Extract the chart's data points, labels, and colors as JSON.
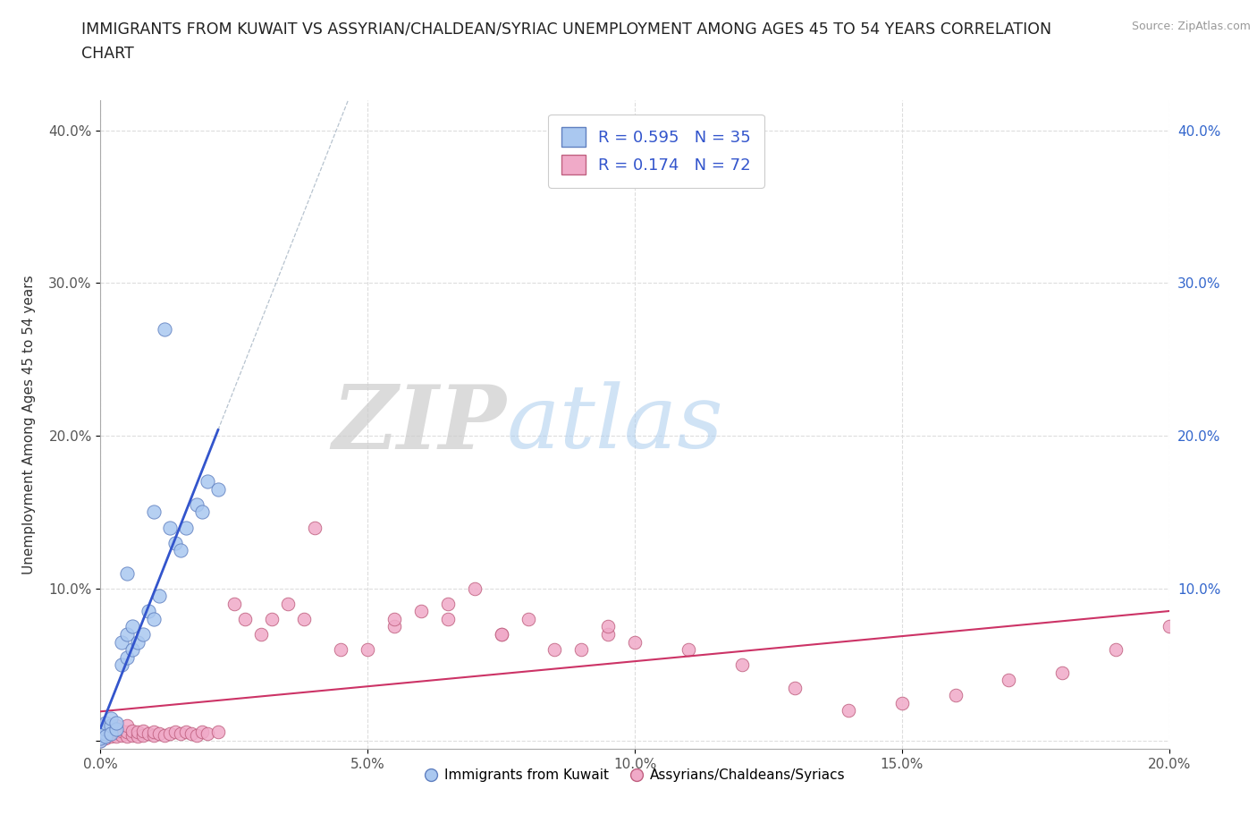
{
  "title_line1": "IMMIGRANTS FROM KUWAIT VS ASSYRIAN/CHALDEAN/SYRIAC UNEMPLOYMENT AMONG AGES 45 TO 54 YEARS CORRELATION",
  "title_line2": "CHART",
  "source_text": "Source: ZipAtlas.com",
  "ylabel": "Unemployment Among Ages 45 to 54 years",
  "xlim": [
    0.0,
    0.2
  ],
  "ylim": [
    -0.005,
    0.42
  ],
  "xticks": [
    0.0,
    0.05,
    0.1,
    0.15,
    0.2
  ],
  "yticks": [
    0.0,
    0.1,
    0.2,
    0.3,
    0.4
  ],
  "xticklabels": [
    "0.0%",
    "5.0%",
    "10.0%",
    "15.0%",
    "20.0%"
  ],
  "yticklabels_left": [
    "",
    "10.0%",
    "20.0%",
    "30.0%",
    "40.0%"
  ],
  "yticklabels_right": [
    "",
    "10.0%",
    "20.0%",
    "30.0%",
    "40.0%"
  ],
  "watermark_zip": "ZIP",
  "watermark_atlas": "atlas",
  "legend_labels": [
    "Immigrants from Kuwait",
    "Assyrians/Chaldeans/Syriacs"
  ],
  "kuwait_color": "#aac8f0",
  "assyrian_color": "#f0aac8",
  "kuwait_edge": "#6080c0",
  "assyrian_edge": "#c06080",
  "line_kuwait_color": "#3355cc",
  "line_assyrian_color": "#cc3366",
  "dashed_line_color": "#99aabb",
  "grid_color": "#dddddd",
  "R_kuwait": 0.595,
  "N_kuwait": 35,
  "R_assyrian": 0.174,
  "N_assyrian": 72,
  "title_color": "#222222",
  "legend_text_color": "#3355cc",
  "kuwait_x": [
    0.0,
    0.0,
    0.0,
    0.0,
    0.001,
    0.001,
    0.001,
    0.001,
    0.002,
    0.002,
    0.002,
    0.003,
    0.003,
    0.004,
    0.004,
    0.005,
    0.005,
    0.005,
    0.006,
    0.006,
    0.007,
    0.008,
    0.009,
    0.01,
    0.01,
    0.011,
    0.012,
    0.013,
    0.014,
    0.015,
    0.016,
    0.018,
    0.019,
    0.02,
    0.022
  ],
  "kuwait_y": [
    0.0,
    0.002,
    0.005,
    0.008,
    0.005,
    0.008,
    0.012,
    0.003,
    0.01,
    0.015,
    0.005,
    0.008,
    0.012,
    0.05,
    0.065,
    0.055,
    0.07,
    0.11,
    0.06,
    0.075,
    0.065,
    0.07,
    0.085,
    0.08,
    0.15,
    0.095,
    0.27,
    0.14,
    0.13,
    0.125,
    0.14,
    0.155,
    0.15,
    0.17,
    0.165
  ],
  "assyrian_x": [
    0.0,
    0.0,
    0.0,
    0.0,
    0.0,
    0.001,
    0.001,
    0.001,
    0.002,
    0.002,
    0.002,
    0.003,
    0.003,
    0.003,
    0.004,
    0.004,
    0.005,
    0.005,
    0.005,
    0.006,
    0.006,
    0.007,
    0.007,
    0.008,
    0.008,
    0.009,
    0.01,
    0.01,
    0.011,
    0.012,
    0.013,
    0.014,
    0.015,
    0.016,
    0.017,
    0.018,
    0.019,
    0.02,
    0.022,
    0.025,
    0.027,
    0.03,
    0.032,
    0.035,
    0.038,
    0.04,
    0.045,
    0.05,
    0.055,
    0.06,
    0.065,
    0.07,
    0.075,
    0.08,
    0.09,
    0.095,
    0.1,
    0.11,
    0.12,
    0.13,
    0.14,
    0.15,
    0.16,
    0.17,
    0.18,
    0.19,
    0.2,
    0.055,
    0.065,
    0.075,
    0.085,
    0.095
  ],
  "assyrian_y": [
    0.0,
    0.002,
    0.005,
    0.008,
    0.01,
    0.002,
    0.005,
    0.008,
    0.003,
    0.006,
    0.01,
    0.003,
    0.006,
    0.01,
    0.004,
    0.007,
    0.003,
    0.006,
    0.01,
    0.004,
    0.007,
    0.003,
    0.006,
    0.004,
    0.007,
    0.005,
    0.004,
    0.006,
    0.005,
    0.004,
    0.005,
    0.006,
    0.005,
    0.006,
    0.005,
    0.004,
    0.006,
    0.005,
    0.006,
    0.09,
    0.08,
    0.07,
    0.08,
    0.09,
    0.08,
    0.14,
    0.06,
    0.06,
    0.075,
    0.085,
    0.09,
    0.1,
    0.07,
    0.08,
    0.06,
    0.07,
    0.065,
    0.06,
    0.05,
    0.035,
    0.02,
    0.025,
    0.03,
    0.04,
    0.045,
    0.06,
    0.075,
    0.08,
    0.08,
    0.07,
    0.06,
    0.075
  ]
}
